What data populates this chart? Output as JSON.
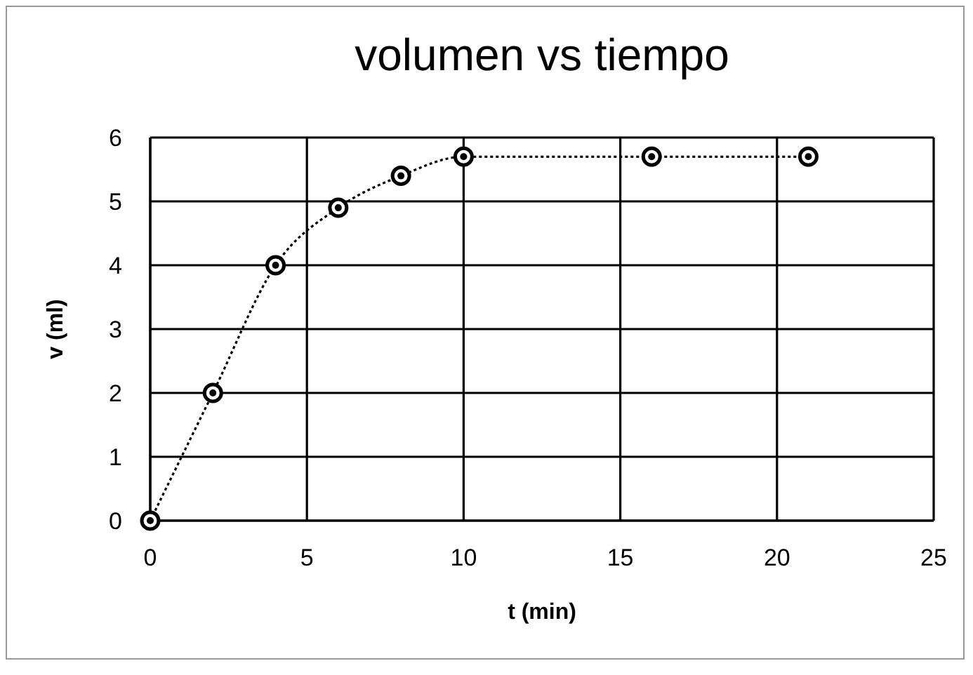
{
  "chart_data": {
    "type": "line",
    "title": "volumen vs tiempo",
    "xlabel": "t (min)",
    "ylabel": "v (ml)",
    "x": [
      0,
      2,
      4,
      6,
      8,
      10,
      16,
      21
    ],
    "series": [
      {
        "color": "#000000",
        "values": [
          0,
          2,
          4,
          4.9,
          5.4,
          5.7,
          5.7,
          5.7
        ]
      }
    ],
    "xlim": [
      0,
      25
    ],
    "xticks": [
      0,
      5,
      10,
      15,
      20,
      25
    ],
    "ylim": [
      0,
      6
    ],
    "yticks": [
      0,
      1,
      2,
      3,
      4,
      5,
      6
    ],
    "grid": true,
    "marker": "circle",
    "line_style": "dotted"
  }
}
